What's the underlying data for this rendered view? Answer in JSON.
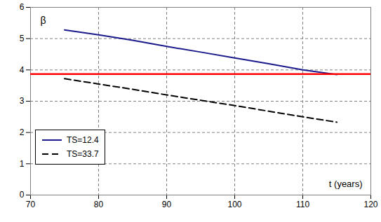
{
  "chart_data": {
    "type": "line",
    "y_label": "β",
    "x_label": "t (years)",
    "xlim": [
      70,
      120
    ],
    "xticks": [
      70,
      80,
      90,
      100,
      110,
      120
    ],
    "ylim": [
      0,
      6
    ],
    "yticks": [
      0,
      1,
      2,
      3,
      4,
      5,
      6
    ],
    "grid": true,
    "legend": "left",
    "series": [
      {
        "name": "TS=12.4",
        "color": "#1a1a8c",
        "line_style": "solid",
        "x": [
          75,
          80,
          85,
          90,
          95,
          100,
          105,
          110,
          115
        ],
        "values": [
          5.28,
          5.12,
          4.95,
          4.75,
          4.57,
          4.38,
          4.2,
          4.0,
          3.85
        ]
      },
      {
        "name": "TS=33.7",
        "color": "#000000",
        "line_style": "dashed",
        "x": [
          75,
          80,
          85,
          90,
          95,
          100,
          105,
          110,
          115
        ],
        "values": [
          3.72,
          3.55,
          3.38,
          3.2,
          3.03,
          2.86,
          2.68,
          2.5,
          2.33
        ]
      },
      {
        "color": "#ff0000",
        "line_style": "solid",
        "x": [
          70,
          120
        ],
        "values": [
          3.87,
          3.87
        ]
      }
    ]
  }
}
